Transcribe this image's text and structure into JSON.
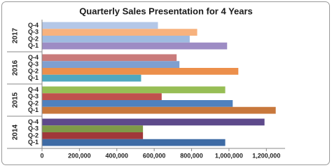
{
  "chart_data": {
    "type": "bar",
    "orientation": "horizontal",
    "title": "Quarterly Sales Presentation for 4 Years",
    "groups": [
      {
        "name": "2017",
        "categories": [
          "Q-4",
          "Q-3",
          "Q-2",
          "Q-1"
        ],
        "values": [
          620000,
          830000,
          790000,
          990000
        ],
        "colors": [
          "#b4c7e7",
          "#f7b27e",
          "#9fbbe0",
          "#9d8cc4"
        ]
      },
      {
        "name": "2016",
        "categories": [
          "Q-4",
          "Q-3",
          "Q-2",
          "Q-1"
        ],
        "values": [
          720000,
          735000,
          1050000,
          530000
        ],
        "colors": [
          "#c97b7b",
          "#7f9fcf",
          "#ec8f4b",
          "#4fa8c0"
        ]
      },
      {
        "name": "2015",
        "categories": [
          "Q-4",
          "Q-3",
          "Q-2",
          "Q-1"
        ],
        "values": [
          980000,
          640000,
          1020000,
          1250000
        ],
        "colors": [
          "#97be55",
          "#c0504d",
          "#4f81bd",
          "#c8783c"
        ]
      },
      {
        "name": "2014",
        "categories": [
          "Q-4",
          "Q-3",
          "Q-2",
          "Q-1"
        ],
        "values": [
          1190000,
          540000,
          540000,
          980000
        ],
        "colors": [
          "#5e4a8b",
          "#7f9a48",
          "#a0383a",
          "#3e6ba5"
        ]
      }
    ],
    "xlim": [
      0,
      1300000
    ],
    "xticks": [
      0,
      {
        "value": 200000,
        "label": "200,000"
      },
      {
        "value": 400000,
        "label": "400,000"
      },
      {
        "value": 600000,
        "label": "600,000"
      },
      {
        "value": 800000,
        "label": "800,000"
      },
      {
        "value": 1000000,
        "label": "1,000,000"
      },
      {
        "value": 1200000,
        "label": "1,200,000"
      }
    ]
  }
}
